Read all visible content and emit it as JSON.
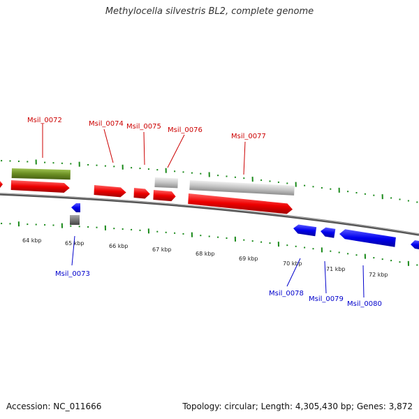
{
  "title": "Methylocella silvestris BL2, complete genome",
  "footer": {
    "accession": "Accession: NC_011666",
    "summary": "Topology: circular; Length: 4,305,430 bp; Genes: 3,872"
  },
  "colors": {
    "forward_gene": "#ee1111",
    "reverse_gene": "#1111ee",
    "rna_gene": "#6b8e23",
    "pseudo_gene": "#bbbbbb",
    "forward_label": "#cc0000",
    "reverse_label": "#0000cc",
    "tick": "#1a8a1a"
  },
  "kbp_ticks": [
    "64 kbp",
    "65 kbp",
    "66 kbp",
    "67 kbp",
    "68 kbp",
    "69 kbp",
    "70 kbp",
    "71 kbp",
    "72 kbp"
  ],
  "forward_labels": [
    "Msil_0072",
    "Msil_0074",
    "Msil_0075",
    "Msil_0076",
    "Msil_0077"
  ],
  "reverse_labels": [
    "Msil_0073",
    "Msil_0078",
    "Msil_0079",
    "Msil_0080"
  ]
}
